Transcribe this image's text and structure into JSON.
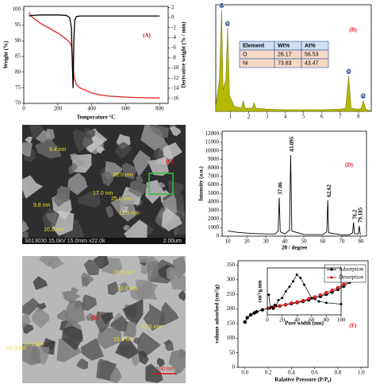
{
  "chart_data": [
    {
      "type": "line",
      "label": "(A)",
      "xlabel": "Temperature °C",
      "ylabel": "Weight (%)",
      "y2label": "Derivative weight (% / min)",
      "x": [
        30,
        50,
        100,
        150,
        200,
        250,
        270,
        280,
        285,
        290,
        295,
        300,
        310,
        330,
        350,
        400,
        450,
        500,
        600,
        700,
        800
      ],
      "series": [
        {
          "name": "Weight",
          "color": "#e02020",
          "values": [
            99,
            97.5,
            95.5,
            94,
            92.5,
            90.5,
            89.5,
            88.5,
            86,
            82,
            79,
            77.5,
            76,
            75,
            74.5,
            73.3,
            72.7,
            72.3,
            72,
            71.8,
            71.7
          ]
        },
        {
          "name": "Derivative weight",
          "color": "#000000",
          "axis": "y2",
          "values": [
            0.3,
            0.4,
            0.5,
            0.5,
            0.5,
            0.4,
            0,
            -2,
            -8,
            -14,
            -4,
            -0.5,
            0.2,
            0.3,
            0.3,
            0.3,
            0.3,
            0.3,
            0.3,
            0.3,
            0.3
          ]
        }
      ],
      "xlim": [
        0,
        850
      ],
      "xticks": [
        0,
        200,
        400,
        600,
        800
      ],
      "ylim": [
        70,
        101
      ],
      "yticks": [
        70,
        75,
        80,
        85,
        90,
        95,
        100
      ],
      "y2lim": [
        -17,
        2.2
      ],
      "y2ticks": [
        2,
        0,
        -2,
        -4,
        -6,
        -8,
        -10,
        -12,
        -14,
        -16
      ]
    },
    {
      "type": "area",
      "label": "(B)",
      "x": [
        0.2,
        0.4,
        0.52,
        0.6,
        0.75,
        0.85,
        0.95,
        1.2,
        1.6,
        1.7,
        1.8,
        2.2,
        2.3,
        2.4,
        3,
        4,
        5,
        6,
        7,
        7.3,
        7.47,
        7.6,
        8,
        8.15,
        8.26,
        8.4,
        8.6
      ],
      "series": [
        {
          "color": "#b5b800",
          "values": [
            5,
            30,
            95,
            20,
            30,
            78,
            15,
            5,
            3,
            10,
            3,
            3,
            8,
            3,
            2,
            1.5,
            1.5,
            1.5,
            2,
            3,
            33,
            3,
            2,
            3,
            10,
            2,
            1
          ]
        }
      ],
      "xlim": [
        0.2,
        8.7
      ],
      "xticks": [
        1,
        2,
        3,
        4,
        5,
        6,
        7,
        8
      ],
      "ylim": [
        0,
        100
      ],
      "annotations": [
        {
          "x": 0.52,
          "text": "O"
        },
        {
          "x": 0.85,
          "text": "Ni"
        },
        {
          "x": 7.47,
          "text": "Ni"
        },
        {
          "x": 8.26,
          "text": "Ni"
        }
      ],
      "table": {
        "header": [
          "Element",
          "Wt%",
          "At%"
        ],
        "rows": [
          [
            "O",
            26.17,
            56.53
          ],
          [
            "Ni",
            73.83,
            43.47
          ]
        ]
      }
    },
    {
      "type": "line",
      "label": "(D)",
      "xlabel": "2θ / degree",
      "ylabel": "Intensity (a.u.)",
      "x": [
        10,
        15,
        20,
        25,
        30,
        35,
        36.5,
        37.06,
        37.6,
        40,
        42.5,
        43.095,
        43.7,
        50,
        55,
        60,
        62.1,
        62.62,
        63.1,
        70,
        74,
        75.7,
        76.2,
        76.7,
        78.7,
        79.185,
        79.7,
        80
      ],
      "series": [
        {
          "color": "#000000",
          "values": [
            600,
            450,
            350,
            300,
            260,
            250,
            600,
            4500,
            500,
            250,
            700,
            9500,
            600,
            200,
            180,
            180,
            500,
            4200,
            400,
            150,
            150,
            400,
            1600,
            300,
            250,
            1200,
            250,
            200
          ]
        }
      ],
      "xlim": [
        7,
        83
      ],
      "xticks": [
        10,
        20,
        30,
        40,
        50,
        60,
        70,
        80
      ],
      "ylim": [
        0,
        12300
      ],
      "yticks": [
        0,
        1000,
        2000,
        3000,
        4000,
        5000,
        6000,
        7000,
        8000,
        9000,
        10000,
        11000,
        12000
      ],
      "peaks": [
        37.06,
        43.095,
        62.62,
        76.2,
        79.185
      ]
    },
    {
      "type": "line",
      "label": "(F)",
      "xlabel": "Ralative Pressure (P/P₀)",
      "ylabel": "volume adsorbed (cm³/g)",
      "legend": "top-right",
      "x": [
        0.0,
        0.02,
        0.05,
        0.08,
        0.1,
        0.15,
        0.2,
        0.25,
        0.3,
        0.35,
        0.4,
        0.45,
        0.5,
        0.55,
        0.6,
        0.65,
        0.7,
        0.75,
        0.8,
        0.85,
        0.9,
        0.93,
        0.96,
        0.98,
        0.99
      ],
      "series": [
        {
          "name": "Adsorption",
          "color": "#000000",
          "marker": true,
          "values": [
            155,
            170,
            180,
            186,
            190,
            197,
            202,
            206,
            210,
            214,
            218,
            222,
            226,
            231,
            237,
            243,
            250,
            258,
            267,
            278,
            292,
            303,
            316,
            326,
            333
          ]
        },
        {
          "name": "Desorption",
          "color": "#d62020",
          "marker": true,
          "values": [
            null,
            null,
            null,
            null,
            null,
            null,
            202,
            206,
            211,
            215,
            220,
            224,
            229,
            235,
            241,
            248,
            256,
            264,
            273,
            284,
            297,
            307,
            319,
            328,
            334
          ]
        }
      ],
      "xlim": [
        -0.06,
        1.06
      ],
      "xticks": [
        {
          "value": 0,
          "label": "0.0"
        },
        {
          "value": 0.2,
          "label": "0.2"
        },
        {
          "value": 0.4,
          "label": "0.4"
        },
        {
          "value": 0.6,
          "label": "0.6"
        },
        {
          "value": 0.8,
          "label": "0.8"
        },
        {
          "value": 1,
          "label": "1.0"
        }
      ],
      "ylim": [
        0,
        365
      ],
      "yticks": [
        0,
        50,
        100,
        150,
        200,
        250,
        300,
        350
      ]
    },
    {
      "type": "line",
      "xlabel": "Pore width (nm)",
      "ylabel": "cm³/g.nm",
      "x": [
        2,
        4,
        6,
        8,
        10,
        12,
        15,
        20,
        25,
        30,
        35,
        40,
        45,
        50,
        60,
        70,
        80,
        100
      ],
      "series": [
        {
          "color": "#000000",
          "marker": true,
          "values": [
            0.3,
            0.1,
            0.12,
            0.09,
            0.15,
            0.14,
            0.22,
            0.25,
            0.35,
            0.42,
            0.5,
            0.6,
            0.55,
            0.45,
            0.25,
            0.2,
            0.18,
            0.16
          ]
        }
      ],
      "xlim": [
        0,
        100
      ],
      "xticks": [
        0,
        20,
        40,
        60,
        80,
        100
      ],
      "ylim": [
        0,
        0.7
      ]
    }
  ],
  "images": [
    {
      "label": "(C)",
      "sizes": [
        "9.4 nm",
        "20.0 nm",
        "17.0 nm",
        "25.0 nm",
        "11.0 nm",
        "9.8 nm",
        "10.0 nm"
      ],
      "scale_bar": "2.00um",
      "footer": "S013030 15.0kV 15.0mm x22.0k"
    },
    {
      "label": "(E)",
      "sizes": [
        "21.5 nm",
        "21.0 nm",
        "22.5 nm",
        "15.5 nm",
        "14.3 nm",
        "17.2 nm"
      ],
      "scale_bar": "100 nm"
    }
  ]
}
